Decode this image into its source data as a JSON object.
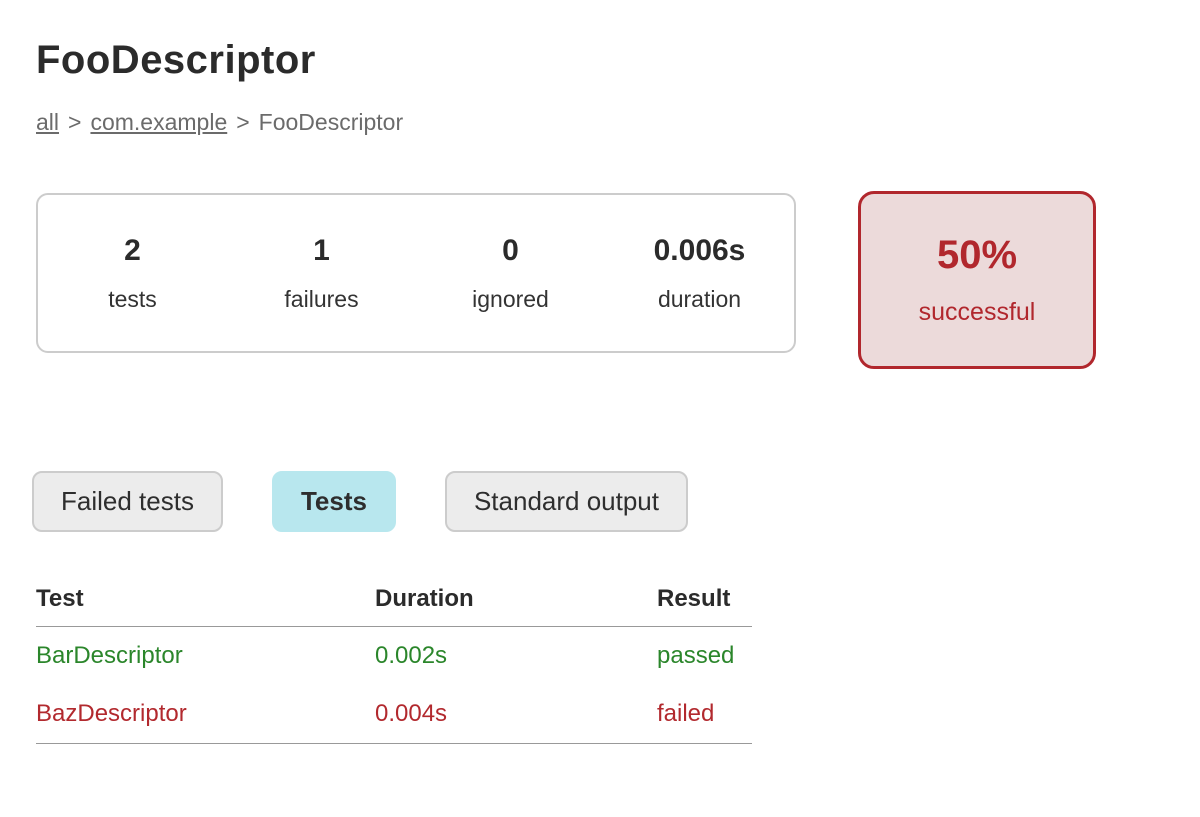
{
  "page": {
    "title": "FooDescriptor"
  },
  "breadcrumb": {
    "separator": ">",
    "items": [
      {
        "label": "all",
        "is_link": true
      },
      {
        "label": "com.example",
        "is_link": true
      },
      {
        "label": "FooDescriptor",
        "is_link": false
      }
    ]
  },
  "summary": {
    "stats": [
      {
        "value": "2",
        "label": "tests"
      },
      {
        "value": "1",
        "label": "failures"
      },
      {
        "value": "0",
        "label": "ignored"
      },
      {
        "value": "0.006s",
        "label": "duration"
      }
    ]
  },
  "success_badge": {
    "percent": "50%",
    "label": "successful"
  },
  "tabs": [
    {
      "label": "Failed tests",
      "active": false
    },
    {
      "label": "Tests",
      "active": true
    },
    {
      "label": "Standard output",
      "active": false
    }
  ],
  "table": {
    "headers": [
      "Test",
      "Duration",
      "Result"
    ],
    "rows": [
      {
        "test": "BarDescriptor",
        "duration": "0.002s",
        "result": "passed",
        "status": "passed"
      },
      {
        "test": "BazDescriptor",
        "duration": "0.004s",
        "result": "failed",
        "status": "failed"
      }
    ]
  },
  "colors": {
    "passed": "#2b862b",
    "failed": "#b2292e",
    "accent_red": "#b1272d",
    "badge_bg": "#ecdada",
    "tab_active_bg": "#b8e7ee",
    "border_gray": "#cccccc"
  }
}
